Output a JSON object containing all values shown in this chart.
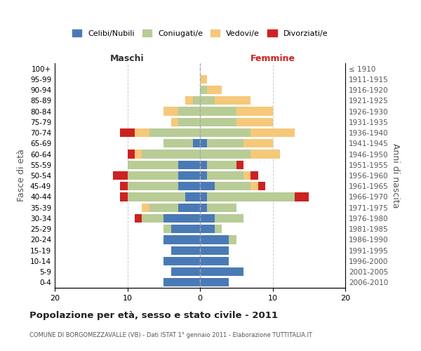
{
  "age_groups": [
    "0-4",
    "5-9",
    "10-14",
    "15-19",
    "20-24",
    "25-29",
    "30-34",
    "35-39",
    "40-44",
    "45-49",
    "50-54",
    "55-59",
    "60-64",
    "65-69",
    "70-74",
    "75-79",
    "80-84",
    "85-89",
    "90-94",
    "95-99",
    "100+"
  ],
  "birth_years": [
    "2006-2010",
    "2001-2005",
    "1996-2000",
    "1991-1995",
    "1986-1990",
    "1981-1985",
    "1976-1980",
    "1971-1975",
    "1966-1970",
    "1961-1965",
    "1956-1960",
    "1951-1955",
    "1946-1950",
    "1941-1945",
    "1936-1940",
    "1931-1935",
    "1926-1930",
    "1921-1925",
    "1916-1920",
    "1911-1915",
    "≤ 1910"
  ],
  "male": {
    "celibi": [
      5,
      4,
      5,
      4,
      5,
      4,
      5,
      3,
      2,
      3,
      3,
      3,
      0,
      1,
      0,
      0,
      0,
      0,
      0,
      0,
      0
    ],
    "coniugati": [
      0,
      0,
      0,
      0,
      0,
      1,
      3,
      4,
      8,
      7,
      7,
      7,
      8,
      4,
      7,
      3,
      3,
      1,
      0,
      0,
      0
    ],
    "vedovi": [
      0,
      0,
      0,
      0,
      0,
      0,
      0,
      1,
      0,
      0,
      0,
      0,
      1,
      0,
      2,
      1,
      2,
      1,
      0,
      0,
      0
    ],
    "divorziati": [
      0,
      0,
      0,
      0,
      0,
      0,
      1,
      0,
      1,
      1,
      2,
      0,
      1,
      0,
      2,
      0,
      0,
      0,
      0,
      0,
      0
    ]
  },
  "female": {
    "nubili": [
      4,
      6,
      4,
      4,
      4,
      2,
      2,
      1,
      1,
      2,
      1,
      1,
      0,
      1,
      0,
      0,
      0,
      0,
      0,
      0,
      0
    ],
    "coniugate": [
      0,
      0,
      0,
      0,
      1,
      1,
      4,
      4,
      12,
      5,
      5,
      4,
      7,
      5,
      7,
      5,
      5,
      2,
      1,
      0,
      0
    ],
    "vedove": [
      0,
      0,
      0,
      0,
      0,
      0,
      0,
      0,
      0,
      1,
      1,
      0,
      4,
      4,
      6,
      5,
      5,
      5,
      2,
      1,
      0
    ],
    "divorziate": [
      0,
      0,
      0,
      0,
      0,
      0,
      0,
      0,
      2,
      1,
      1,
      1,
      0,
      0,
      0,
      0,
      0,
      0,
      0,
      0,
      0
    ]
  },
  "colors": {
    "celibi": "#4a7ab5",
    "coniugati": "#b8cc96",
    "vedovi": "#f5c87a",
    "divorziati": "#cc2222"
  },
  "xlim": [
    -20,
    20
  ],
  "xticks": [
    -20,
    -10,
    0,
    10,
    20
  ],
  "xticklabels": [
    "20",
    "10",
    "0",
    "10",
    "20"
  ],
  "title": "Popolazione per età, sesso e stato civile - 2011",
  "subtitle": "COMUNE DI BORGOMEZZAVALLE (VB) - Dati ISTAT 1° gennaio 2011 - Elaborazione TUTTITALIA.IT",
  "ylabel_left": "Fasce di età",
  "ylabel_right": "Anni di nascita",
  "label_maschi": "Maschi",
  "label_femmine": "Femmine",
  "legend_labels": [
    "Celibi/Nubili",
    "Coniugati/e",
    "Vedovi/e",
    "Divorziati/e"
  ],
  "background_color": "#ffffff",
  "grid_color": "#cccccc"
}
